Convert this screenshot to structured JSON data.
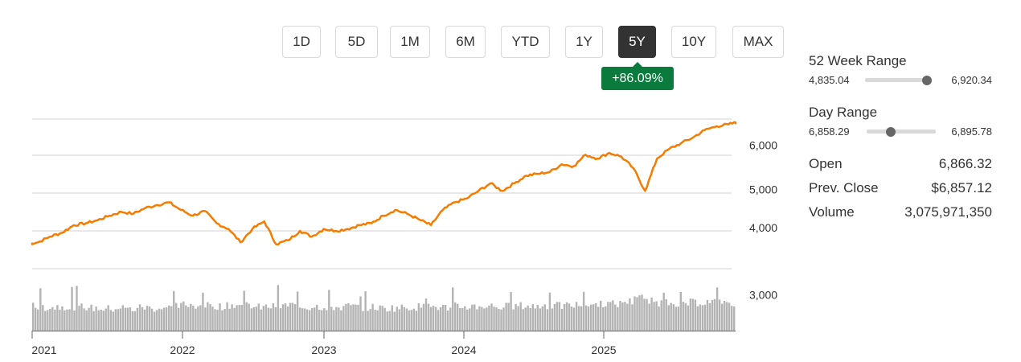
{
  "range_buttons": [
    {
      "label": "1D",
      "active": false
    },
    {
      "label": "5D",
      "active": false
    },
    {
      "label": "1M",
      "active": false
    },
    {
      "label": "6M",
      "active": false
    },
    {
      "label": "YTD",
      "active": false
    },
    {
      "label": "1Y",
      "active": false
    },
    {
      "label": "5Y",
      "active": true
    },
    {
      "label": "10Y",
      "active": false
    },
    {
      "label": "MAX",
      "active": false
    }
  ],
  "change_badge": "+86.09%",
  "stats": {
    "week52": {
      "label": "52 Week Range",
      "low": "4,835.04",
      "high": "6,920.34",
      "position": 0.96
    },
    "day": {
      "label": "Day Range",
      "low": "6,858.29",
      "high": "6,895.78",
      "position": 0.35
    },
    "open": {
      "label": "Open",
      "value": "6,866.32"
    },
    "prev_close": {
      "label": "Prev. Close",
      "value": "$6,857.12"
    },
    "volume": {
      "label": "Volume",
      "value": "3,075,971,350"
    }
  },
  "colors": {
    "line": "#f57c00",
    "volume": "#b3b3b3",
    "grid": "#d0d0d0",
    "badge": "#0a7a3d"
  },
  "chart_data": {
    "type": "line",
    "x_ticks": [
      "2021",
      "2022",
      "2023",
      "2024",
      "2025"
    ],
    "y_ticks": [
      "3,000",
      "4,000",
      "5,000",
      "6,000"
    ],
    "ylim": [
      2500,
      7300
    ],
    "grid": true,
    "series": [
      {
        "x": [
          "2020-12",
          "2021-01",
          "2021-02",
          "2021-03",
          "2021-04",
          "2021-05",
          "2021-06",
          "2021-07",
          "2021-08",
          "2021-09",
          "2021-10",
          "2021-11",
          "2021-12",
          "2022-01",
          "2022-02",
          "2022-03",
          "2022-04",
          "2022-05",
          "2022-06",
          "2022-07",
          "2022-08",
          "2022-09",
          "2022-10",
          "2022-11",
          "2022-12",
          "2023-01",
          "2023-02",
          "2023-03",
          "2023-04",
          "2023-05",
          "2023-06",
          "2023-07",
          "2023-08",
          "2023-09",
          "2023-10",
          "2023-11",
          "2023-12",
          "2024-01",
          "2024-02",
          "2024-03",
          "2024-04",
          "2024-05",
          "2024-06",
          "2024-07",
          "2024-08",
          "2024-09",
          "2024-10",
          "2024-11",
          "2024-12",
          "2025-01",
          "2025-02",
          "2025-03",
          "2025-04",
          "2025-05",
          "2025-06",
          "2025-07",
          "2025-08",
          "2025-09",
          "2025-10",
          "2025-11",
          "2025-12"
        ],
        "values": [
          3650,
          3700,
          3850,
          3950,
          4150,
          4200,
          4280,
          4400,
          4500,
          4450,
          4600,
          4680,
          4750,
          4550,
          4400,
          4520,
          4200,
          4050,
          3700,
          4050,
          4250,
          3650,
          3750,
          4000,
          3850,
          4050,
          4000,
          4050,
          4150,
          4200,
          4400,
          4550,
          4450,
          4300,
          4150,
          4550,
          4750,
          4850,
          5050,
          5250,
          5050,
          5250,
          5450,
          5500,
          5550,
          5750,
          5700,
          6000,
          5900,
          6050,
          5950,
          5650,
          5050,
          5900,
          6150,
          6300,
          6450,
          6650,
          6750,
          6800,
          6870
        ]
      }
    ],
    "volume_values": [
      4.3,
      4.0,
      4.2,
      3.9,
      4.1,
      3.8,
      3.7,
      3.9,
      3.6,
      4.0,
      3.8,
      3.9,
      4.2,
      4.6,
      4.4,
      4.3,
      4.2,
      4.5,
      4.4,
      4.0,
      4.1,
      4.3,
      4.5,
      4.0,
      4.2,
      4.1,
      4.0,
      4.2,
      3.9,
      4.0,
      3.8,
      3.9,
      4.0,
      4.1,
      4.2,
      4.0,
      4.3,
      4.1,
      4.2,
      4.3,
      4.1,
      4.2,
      4.3,
      4.2,
      4.4,
      4.3,
      4.4,
      4.5,
      4.6,
      4.8,
      4.7,
      5.2,
      6.5,
      5.2,
      5.0,
      4.9,
      4.8,
      5.0,
      5.1,
      5.2,
      5.0
    ]
  }
}
